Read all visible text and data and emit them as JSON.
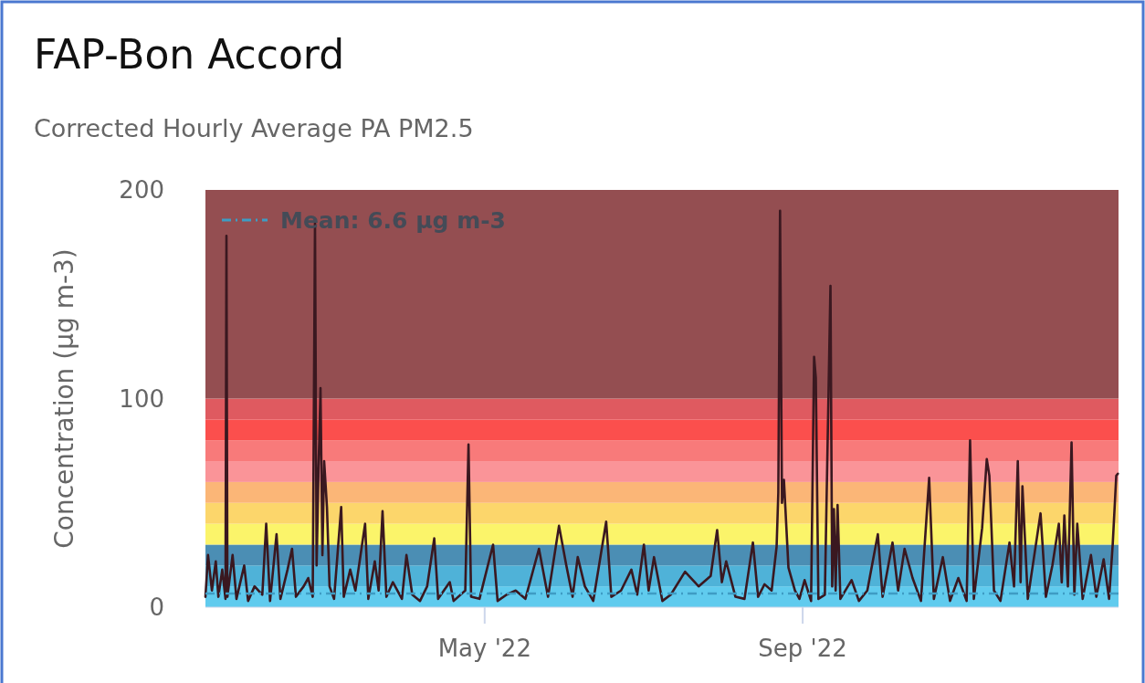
{
  "chart_data": {
    "type": "line",
    "title": "FAP-Bon Accord",
    "subtitle": "Corrected Hourly Average PA PM2.5",
    "ylabel": "Concentration (µg m-3)",
    "x": [
      "2022-01-13T00:00",
      "2022-01-14T00:00",
      "2022-01-15T12:00",
      "2022-01-17T00:00",
      "2022-01-18T00:00",
      "2022-01-19T12:00",
      "2022-01-20T18:00",
      "2022-01-21T03:00",
      "2022-01-21T12:00",
      "2022-01-23T12:00",
      "2022-01-25T00:00",
      "2022-01-28T00:00",
      "2022-01-29T12:00",
      "2022-02-01T00:00",
      "2022-02-04T00:00",
      "2022-02-05T12:00",
      "2022-02-07T00:00",
      "2022-02-09T12:00",
      "2022-02-11T00:00",
      "2022-02-13T18:00",
      "2022-02-15T12:00",
      "2022-02-17T00:00",
      "2022-02-20T00:00",
      "2022-02-21T18:00",
      "2022-02-23T12:00",
      "2022-02-24T09:00",
      "2022-02-25T00:00",
      "2022-02-25T18:00",
      "2022-02-26T12:00",
      "2022-02-27T06:00",
      "2022-02-27T22:00",
      "2022-03-01T00:00",
      "2022-03-02T00:00",
      "2022-03-03T18:00",
      "2022-03-06T12:00",
      "2022-03-07T12:00",
      "2022-03-10T00:00",
      "2022-03-12T00:00",
      "2022-03-15T18:00",
      "2022-03-17T00:00",
      "2022-03-19T12:00",
      "2022-03-21T00:00",
      "2022-03-22T12:00",
      "2022-03-24T00:00",
      "2022-03-26T12:00",
      "2022-03-30T00:00",
      "2022-03-31T18:00",
      "2022-04-03T00:00",
      "2022-04-06T00:00",
      "2022-04-08T18:00",
      "2022-04-11T12:00",
      "2022-04-13T00:00",
      "2022-04-17T12:00",
      "2022-04-19T00:00",
      "2022-04-23T12:00",
      "2022-04-24T18:00",
      "2022-04-25T18:00",
      "2022-04-29T00:00",
      "2022-05-04T06:00",
      "2022-05-06T00:00",
      "2022-05-09T12:00",
      "2022-05-13T00:00",
      "2022-05-16T18:00",
      "2022-05-18T12:00",
      "2022-05-22T00:00",
      "2022-05-25T12:00",
      "2022-05-29T18:00",
      "2022-06-01T14:00",
      "2022-06-04T00:00",
      "2022-06-06T00:00",
      "2022-06-08T18:00",
      "2022-06-12T00:00",
      "2022-06-17T00:00",
      "2022-06-19T00:00",
      "2022-06-22T18:00",
      "2022-06-26T18:00",
      "2022-06-29T00:00",
      "2022-07-01T14:00",
      "2022-07-03T10:00",
      "2022-07-05T12:00",
      "2022-07-08T18:00",
      "2022-07-12T00:00",
      "2022-07-17T12:00",
      "2022-07-22T18:00",
      "2022-07-27T10:00",
      "2022-07-29T22:00",
      "2022-07-31T18:00",
      "2022-08-02T10:00",
      "2022-08-06T00:00",
      "2022-08-09T12:00",
      "2022-08-12T18:00",
      "2022-08-14T18:00",
      "2022-08-17T06:00",
      "2022-08-20T00:00",
      "2022-08-21T22:00",
      "2022-08-22T14:00",
      "2022-08-23T06:00",
      "2022-08-24T00:00",
      "2022-08-24T18:00",
      "2022-08-26T12:00",
      "2022-08-29T00:00",
      "2022-08-30T18:00",
      "2022-09-01T18:00",
      "2022-09-04T06:00",
      "2022-09-05T10:00",
      "2022-09-06T02:00",
      "2022-09-07T02:00",
      "2022-09-09T14:00",
      "2022-09-11T18:00",
      "2022-09-12T10:00",
      "2022-09-13T02:00",
      "2022-09-13T18:00",
      "2022-09-14T12:00",
      "2022-09-15T14:00",
      "2022-09-19T22:00",
      "2022-09-22T18:00",
      "2022-09-26T00:00",
      "2022-09-30T02:00",
      "2022-10-01T22:00",
      "2022-10-05T18:00",
      "2022-10-07T22:00",
      "2022-10-10T10:00",
      "2022-10-13T12:00",
      "2022-10-16T18:00",
      "2022-10-19T22:00",
      "2022-10-21T18:00",
      "2022-10-25T05:00",
      "2022-10-28T00:00",
      "2022-10-31T05:00",
      "2022-11-03T10:00",
      "2022-11-04T18:00",
      "2022-11-06T05:00",
      "2022-11-09T10:00",
      "2022-11-11T05:00",
      "2022-11-12T05:00",
      "2022-11-14T00:00",
      "2022-11-16T12:00",
      "2022-11-20T00:00",
      "2022-11-21T18:00",
      "2022-11-23T05:00",
      "2022-11-24T07:00",
      "2022-11-25T00:00",
      "2022-11-27T02:00",
      "2022-12-02T00:00",
      "2022-12-04T02:00",
      "2022-12-06T14:00",
      "2022-12-09T02:00",
      "2022-12-10T05:00",
      "2022-12-11T05:00",
      "2022-12-12T14:00",
      "2022-12-14T00:00",
      "2022-12-15T02:00",
      "2022-12-16T05:00",
      "2022-12-18T07:00",
      "2022-12-21T12:00",
      "2022-12-23T14:00",
      "2022-12-26T10:00",
      "2022-12-28T12:00",
      "2022-12-29T22:00",
      "2022-12-31T07:00",
      "2022-12-31T22:00"
    ],
    "series": [
      {
        "color": "#3a1820",
        "values": [
          5,
          25,
          8,
          22,
          5,
          18,
          4,
          178,
          5,
          25,
          4,
          20,
          3,
          10,
          6,
          40,
          3,
          35,
          4,
          18,
          28,
          5,
          10,
          14,
          5,
          184,
          20,
          67,
          105,
          25,
          70,
          48,
          10,
          4,
          48,
          5,
          18,
          8,
          40,
          4,
          22,
          8,
          46,
          5,
          12,
          4,
          25,
          6,
          3,
          10,
          33,
          4,
          12,
          3,
          8,
          78,
          5,
          4,
          30,
          3,
          6,
          8,
          4,
          12,
          28,
          5,
          39,
          20,
          5,
          24,
          10,
          3,
          41,
          5,
          8,
          18,
          6,
          30,
          8,
          24,
          3,
          6,
          17,
          10,
          15,
          37,
          12,
          22,
          5,
          4,
          31,
          5,
          11,
          8,
          29,
          55,
          190,
          50,
          61,
          19,
          8,
          4,
          13,
          3,
          120,
          110,
          4,
          6,
          154,
          10,
          47,
          8,
          49,
          4,
          13,
          3,
          8,
          35,
          5,
          31,
          8,
          28,
          14,
          3,
          62,
          4,
          24,
          3,
          14,
          3,
          80,
          4,
          38,
          71,
          63,
          8,
          3,
          31,
          10,
          70,
          12,
          58,
          4,
          45,
          5,
          20,
          40,
          12,
          44,
          10,
          79,
          6,
          40,
          4,
          25,
          5,
          23,
          4,
          30,
          63,
          64
        ]
      }
    ],
    "xlim": [
      "2022-01-13T00:00",
      "2023-01-01T04:00"
    ],
    "xticks": [
      {
        "value": "2022-05-01",
        "label": "May '22"
      },
      {
        "value": "2022-09-01",
        "label": "Sep '22"
      }
    ],
    "ylim": [
      0,
      200
    ],
    "yticks": [
      0,
      100,
      200
    ],
    "bands": [
      {
        "axis": "y",
        "from": 0,
        "to": 10,
        "color": "#60cbee"
      },
      {
        "axis": "y",
        "from": 10,
        "to": 20,
        "color": "#4fb2d8"
      },
      {
        "axis": "y",
        "from": 20,
        "to": 30,
        "color": "#4b8eb4"
      },
      {
        "axis": "y",
        "from": 30,
        "to": 40,
        "color": "#fbf46a"
      },
      {
        "axis": "y",
        "from": 40,
        "to": 50,
        "color": "#fcd66b"
      },
      {
        "axis": "y",
        "from": 50,
        "to": 60,
        "color": "#fbb677"
      },
      {
        "axis": "y",
        "from": 60,
        "to": 70,
        "color": "#fa9498"
      },
      {
        "axis": "y",
        "from": 70,
        "to": 80,
        "color": "#f87a7a"
      },
      {
        "axis": "y",
        "from": 80,
        "to": 90,
        "color": "#fb4f4d"
      },
      {
        "axis": "y",
        "from": 90,
        "to": 100,
        "color": "#df5a60"
      },
      {
        "axis": "y",
        "from": 100,
        "to": 200,
        "color": "#944e51"
      }
    ],
    "ref_lines": [
      {
        "axis": "y",
        "value": 6.6,
        "label": "Mean: 6.6 µg m-3",
        "color": "#3e9cc4",
        "line_style": "dashed"
      }
    ]
  }
}
